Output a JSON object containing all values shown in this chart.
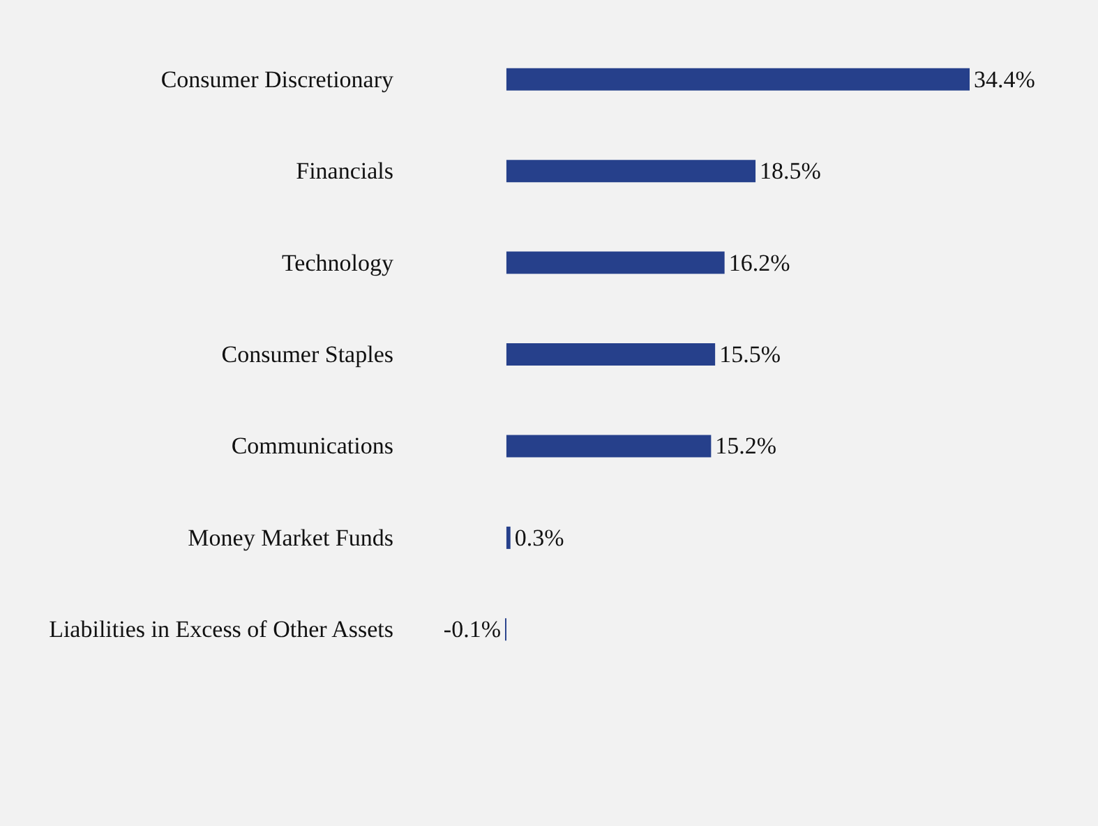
{
  "chart_data": {
    "type": "bar",
    "orientation": "horizontal",
    "categories": [
      "Consumer Discretionary",
      "Financials",
      "Technology",
      "Consumer Staples",
      "Communications",
      "Money Market Funds",
      "Liabilities in Excess of Other Assets"
    ],
    "values": [
      34.4,
      18.5,
      16.2,
      15.5,
      15.2,
      0.3,
      -0.1
    ],
    "value_labels": [
      "34.4%",
      "18.5%",
      "16.2%",
      "15.5%",
      "15.2%",
      "0.3%",
      "-0.1%"
    ],
    "color": "#26408b"
  }
}
